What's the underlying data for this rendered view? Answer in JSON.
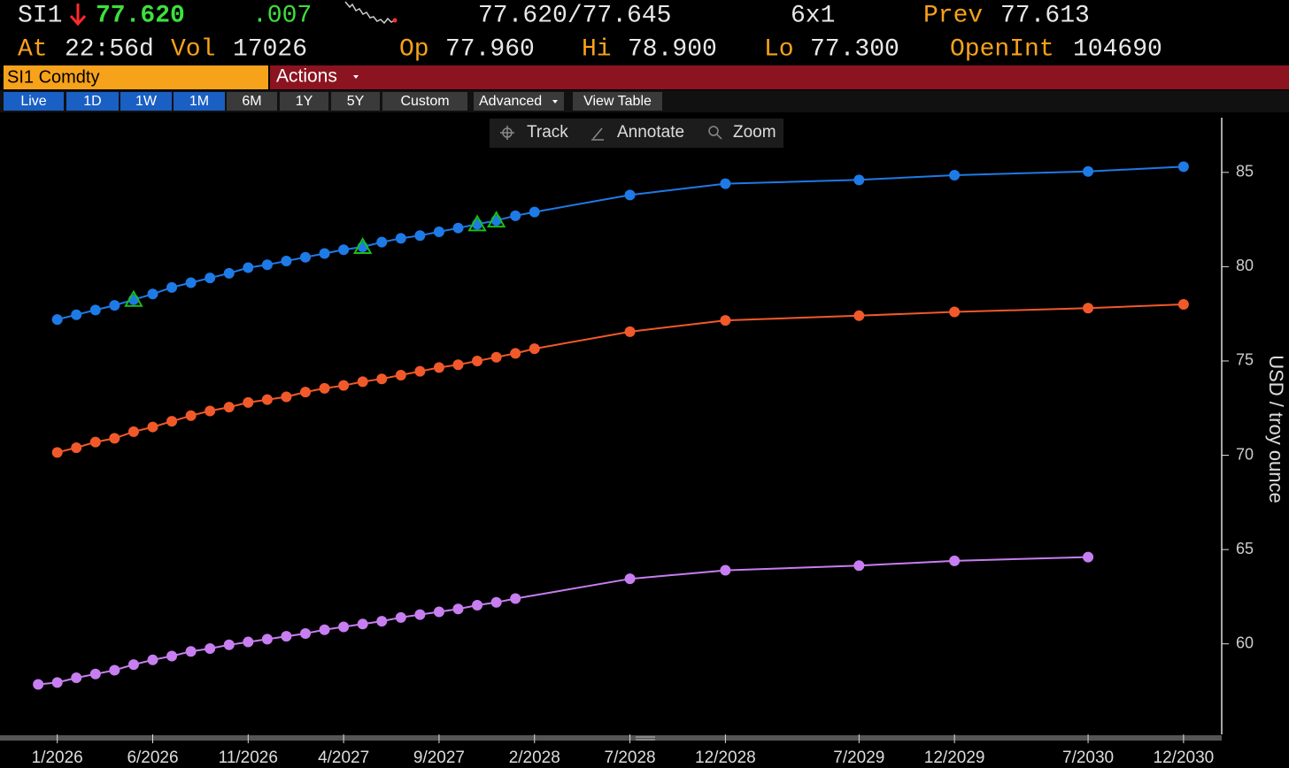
{
  "header": {
    "ticker": "SI1",
    "last": "77.620",
    "change": ".007",
    "bid_ask": "77.620/77.645",
    "size": "6x1",
    "prev_label": "Prev",
    "prev": "77.613",
    "time_label": "At",
    "time": "22:56d",
    "vol_label": "Vol",
    "vol": "17026",
    "open_label": "Op",
    "open": "77.960",
    "high_label": "Hi",
    "high": "78.900",
    "low_label": "Lo",
    "low": "77.300",
    "oi_label": "OpenInt",
    "oi": "104690"
  },
  "security": "SI1 Comdty",
  "actions": "Actions",
  "tabs": [
    "Live",
    "1D",
    "1W",
    "1M",
    "6M",
    "1Y",
    "5Y",
    "Custom",
    "Advanced",
    "View Table"
  ],
  "tools": [
    "Track",
    "Annotate",
    "Zoom"
  ],
  "chart_data": {
    "type": "line",
    "y_label": "USD / troy ounce",
    "xlim": [
      "10/2025",
      "2/2031"
    ],
    "xticks": [
      "1/2026",
      "6/2026",
      "11/2026",
      "4/2027",
      "9/2027",
      "2/2028",
      "7/2028",
      "12/2028",
      "7/2029",
      "12/2029",
      "7/2030",
      "12/2030"
    ],
    "ylim": [
      55.2,
      87.9
    ],
    "yticks": [
      60,
      65,
      70,
      75,
      80,
      85
    ],
    "grid": false,
    "series": [
      {
        "color": "#1e7ae6",
        "x": [
          "1/2026",
          "2/2026",
          "3/2026",
          "4/2026",
          "5/2026",
          "6/2026",
          "7/2026",
          "8/2026",
          "9/2026",
          "10/2026",
          "11/2026",
          "12/2026",
          "1/2027",
          "2/2027",
          "3/2027",
          "4/2027",
          "5/2027",
          "6/2027",
          "7/2027",
          "8/2027",
          "9/2027",
          "10/2027",
          "11/2027",
          "12/2027",
          "1/2028",
          "2/2028",
          "7/2028",
          "12/2028",
          "7/2029",
          "12/2029",
          "7/2030",
          "12/2030"
        ],
        "values": [
          77.2,
          77.45,
          77.7,
          77.95,
          78.25,
          78.55,
          78.9,
          79.15,
          79.4,
          79.65,
          79.95,
          80.1,
          80.3,
          80.5,
          80.7,
          80.9,
          81.05,
          81.3,
          81.5,
          81.65,
          81.85,
          82.05,
          82.25,
          82.45,
          82.7,
          82.9,
          83.8,
          84.4,
          84.6,
          84.85,
          85.05,
          85.3
        ]
      },
      {
        "color": "#f2592a",
        "x": [
          "1/2026",
          "2/2026",
          "3/2026",
          "4/2026",
          "5/2026",
          "6/2026",
          "7/2026",
          "8/2026",
          "9/2026",
          "10/2026",
          "11/2026",
          "12/2026",
          "1/2027",
          "2/2027",
          "3/2027",
          "4/2027",
          "5/2027",
          "6/2027",
          "7/2027",
          "8/2027",
          "9/2027",
          "10/2027",
          "11/2027",
          "12/2027",
          "1/2028",
          "2/2028",
          "7/2028",
          "12/2028",
          "7/2029",
          "12/2029",
          "7/2030",
          "12/2030"
        ],
        "values": [
          70.15,
          70.4,
          70.7,
          70.9,
          71.25,
          71.5,
          71.8,
          72.1,
          72.35,
          72.55,
          72.8,
          72.95,
          73.1,
          73.35,
          73.55,
          73.7,
          73.9,
          74.05,
          74.25,
          74.45,
          74.65,
          74.8,
          75.0,
          75.2,
          75.4,
          75.65,
          76.55,
          77.15,
          77.4,
          77.6,
          77.8,
          78.0
        ]
      },
      {
        "color": "#c77ef0",
        "x": [
          "12/2025",
          "1/2026",
          "2/2026",
          "3/2026",
          "4/2026",
          "5/2026",
          "6/2026",
          "7/2026",
          "8/2026",
          "9/2026",
          "10/2026",
          "11/2026",
          "12/2026",
          "1/2027",
          "2/2027",
          "3/2027",
          "4/2027",
          "5/2027",
          "6/2027",
          "7/2027",
          "8/2027",
          "9/2027",
          "10/2027",
          "11/2027",
          "12/2027",
          "1/2028",
          "7/2028",
          "12/2028",
          "7/2029",
          "12/2029",
          "7/2030"
        ],
        "values": [
          57.85,
          57.95,
          58.2,
          58.4,
          58.6,
          58.9,
          59.15,
          59.35,
          59.6,
          59.75,
          59.95,
          60.1,
          60.25,
          60.4,
          60.55,
          60.75,
          60.9,
          61.05,
          61.2,
          61.4,
          61.55,
          61.7,
          61.85,
          62.05,
          62.2,
          62.4,
          63.45,
          63.9,
          64.15,
          64.4,
          64.6
        ]
      }
    ],
    "trade_markers": {
      "color": "#18c018",
      "series": 0,
      "x": [
        "5/2026",
        "5/2027",
        "11/2027",
        "12/2027"
      ]
    }
  }
}
